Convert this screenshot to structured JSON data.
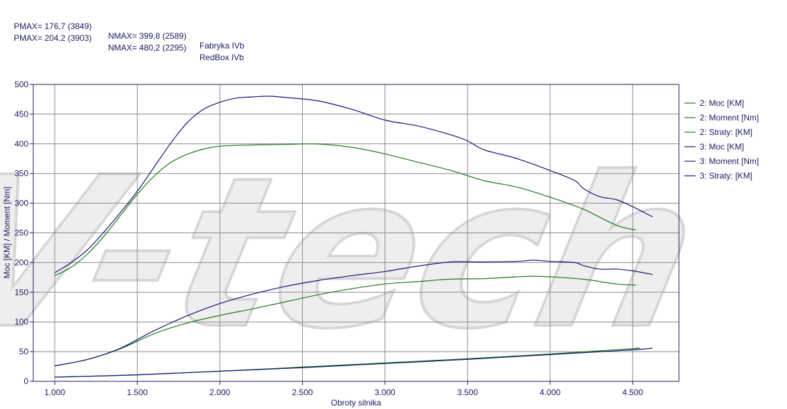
{
  "header": {
    "row1": {
      "pmax": "PMAX= 176,7 (3849)",
      "nmax": "NMAX= 399,8 (2589)",
      "name": "Fabryka IVb"
    },
    "row2": {
      "pmax": "PMAX= 204,2 (3903)",
      "nmax": "NMAX= 480,2 (2295)",
      "name": "RedBox IVb"
    }
  },
  "watermark": "V-tech",
  "colors": {
    "series2": "#1a7a1a",
    "series3": "#14147a",
    "grid": "#8a8a8a",
    "axis": "#1a1a60"
  },
  "chart_data": {
    "type": "line",
    "xlabel": "Obroty silnika",
    "ylabel": "Moc [KM] / Moment [Nm]",
    "xlim": [
      870,
      4780
    ],
    "ylim": [
      0,
      500
    ],
    "xticks": [
      1000,
      1500,
      2000,
      2500,
      3000,
      3500,
      4000,
      4500
    ],
    "xtick_labels": [
      "1.000",
      "1.500",
      "2.000",
      "2.500",
      "3.000",
      "3.500",
      "4.000",
      "4.500"
    ],
    "yticks": [
      0,
      50,
      100,
      150,
      200,
      250,
      300,
      350,
      400,
      450,
      500
    ],
    "ytick_labels": [
      "0",
      "50",
      "100",
      "150",
      "200",
      "250",
      "300",
      "350",
      "400",
      "450",
      "500"
    ],
    "grid": true,
    "legend_position": "right",
    "series": [
      {
        "name": "2: Moc [KM]",
        "color": "#1a7a1a",
        "x": [
          1000,
          1200,
          1400,
          1600,
          1800,
          2000,
          2200,
          2400,
          2600,
          2800,
          3000,
          3200,
          3400,
          3600,
          3800,
          3900,
          4000,
          4200,
          4400,
          4520
        ],
        "y": [
          26,
          37,
          55,
          80,
          98,
          111,
          122,
          134,
          146,
          156,
          164,
          168,
          172,
          173,
          176,
          177,
          176,
          172,
          164,
          162
        ]
      },
      {
        "name": "2: Moment [Nm]",
        "color": "#1a7a1a",
        "x": [
          1000,
          1100,
          1200,
          1300,
          1400,
          1500,
          1600,
          1700,
          1800,
          1900,
          2000,
          2200,
          2400,
          2589,
          2800,
          3000,
          3200,
          3400,
          3600,
          3800,
          4000,
          4200,
          4400,
          4520
        ],
        "y": [
          178,
          192,
          215,
          245,
          280,
          315,
          345,
          368,
          382,
          391,
          396,
          398,
          399,
          399.8,
          394,
          383,
          369,
          355,
          338,
          327,
          310,
          290,
          263,
          255
        ]
      },
      {
        "name": "2: Straty: [KM]",
        "color": "#1a7a1a",
        "x": [
          1000,
          1500,
          2000,
          2500,
          3000,
          3500,
          4000,
          4500,
          4520
        ],
        "y": [
          7,
          11,
          17,
          24,
          31,
          38,
          46,
          55,
          56
        ]
      },
      {
        "name": "3: Moc [KM]",
        "color": "#14147a",
        "x": [
          1000,
          1200,
          1400,
          1600,
          1800,
          2000,
          2200,
          2400,
          2600,
          2800,
          3000,
          3200,
          3400,
          3600,
          3800,
          3900,
          4000,
          4150,
          4200,
          4300,
          4400,
          4500,
          4620
        ],
        "y": [
          26,
          37,
          56,
          85,
          110,
          131,
          147,
          160,
          170,
          178,
          185,
          194,
          201,
          201,
          202,
          204,
          202,
          200,
          195,
          189,
          189,
          186,
          180
        ]
      },
      {
        "name": "3: Moment [Nm]",
        "color": "#14147a",
        "x": [
          1000,
          1100,
          1200,
          1300,
          1400,
          1500,
          1600,
          1700,
          1800,
          1900,
          2000,
          2100,
          2200,
          2295,
          2400,
          2600,
          2800,
          3000,
          3200,
          3400,
          3500,
          3600,
          3800,
          4000,
          4150,
          4200,
          4300,
          4400,
          4500,
          4620
        ],
        "y": [
          183,
          200,
          222,
          252,
          285,
          320,
          360,
          400,
          435,
          458,
          470,
          477,
          479,
          480.2,
          478,
          472,
          458,
          440,
          430,
          415,
          405,
          390,
          375,
          355,
          338,
          325,
          311,
          306,
          294,
          277
        ]
      },
      {
        "name": "3: Straty: [KM]",
        "color": "#14147a",
        "x": [
          1000,
          1500,
          2000,
          2500,
          3000,
          3500,
          4000,
          4500,
          4620
        ],
        "y": [
          7,
          11,
          17,
          23,
          30,
          37,
          45,
          53,
          56
        ]
      }
    ]
  }
}
